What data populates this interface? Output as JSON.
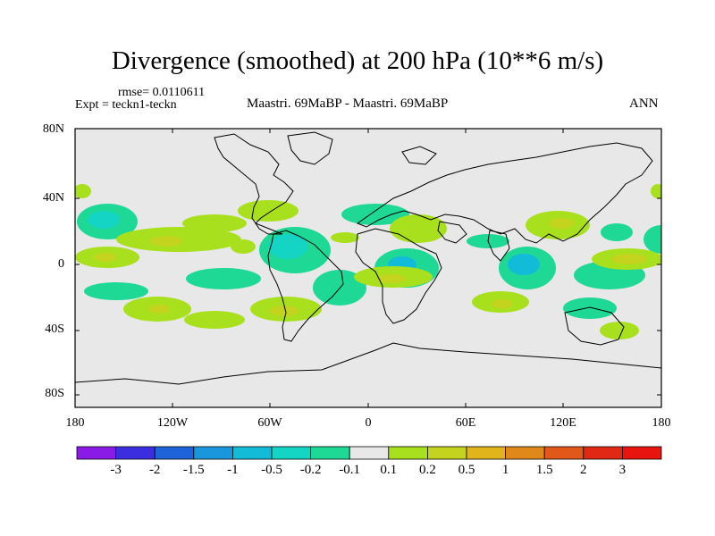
{
  "title": "Divergence (smoothed) at 200 hPa (10**6 m/s)",
  "rmse_label": "rmse= 0.0110611",
  "expt_label": "Expt = teckn1-teckn",
  "case_label": "Maastri.  69MaBP - Maastri.  69MaBP",
  "period_label": "ANN",
  "lat_ticks": [
    "80N",
    "40N",
    "0",
    "40S",
    "80S"
  ],
  "lon_ticks": [
    "180",
    "120W",
    "60W",
    "0",
    "60E",
    "120E",
    "180"
  ],
  "colorbar": {
    "labels": [
      "-3",
      "-2",
      "-1.5",
      "-1",
      "-0.5",
      "-0.2",
      "-0.1",
      "0.1",
      "0.2",
      "0.5",
      "1",
      "1.5",
      "2",
      "3"
    ],
    "colors": [
      "#8a1ae6",
      "#3a2ee0",
      "#1e64d8",
      "#1a96dc",
      "#12bcd8",
      "#14d4c4",
      "#1ed896",
      "#e8e8e8",
      "#a8e01e",
      "#c4d41e",
      "#e0b41a",
      "#e0881a",
      "#e0581a",
      "#e02814",
      "#e81410"
    ]
  },
  "colors": {
    "background_field": "#e8e8e8",
    "coast": "#000000"
  }
}
